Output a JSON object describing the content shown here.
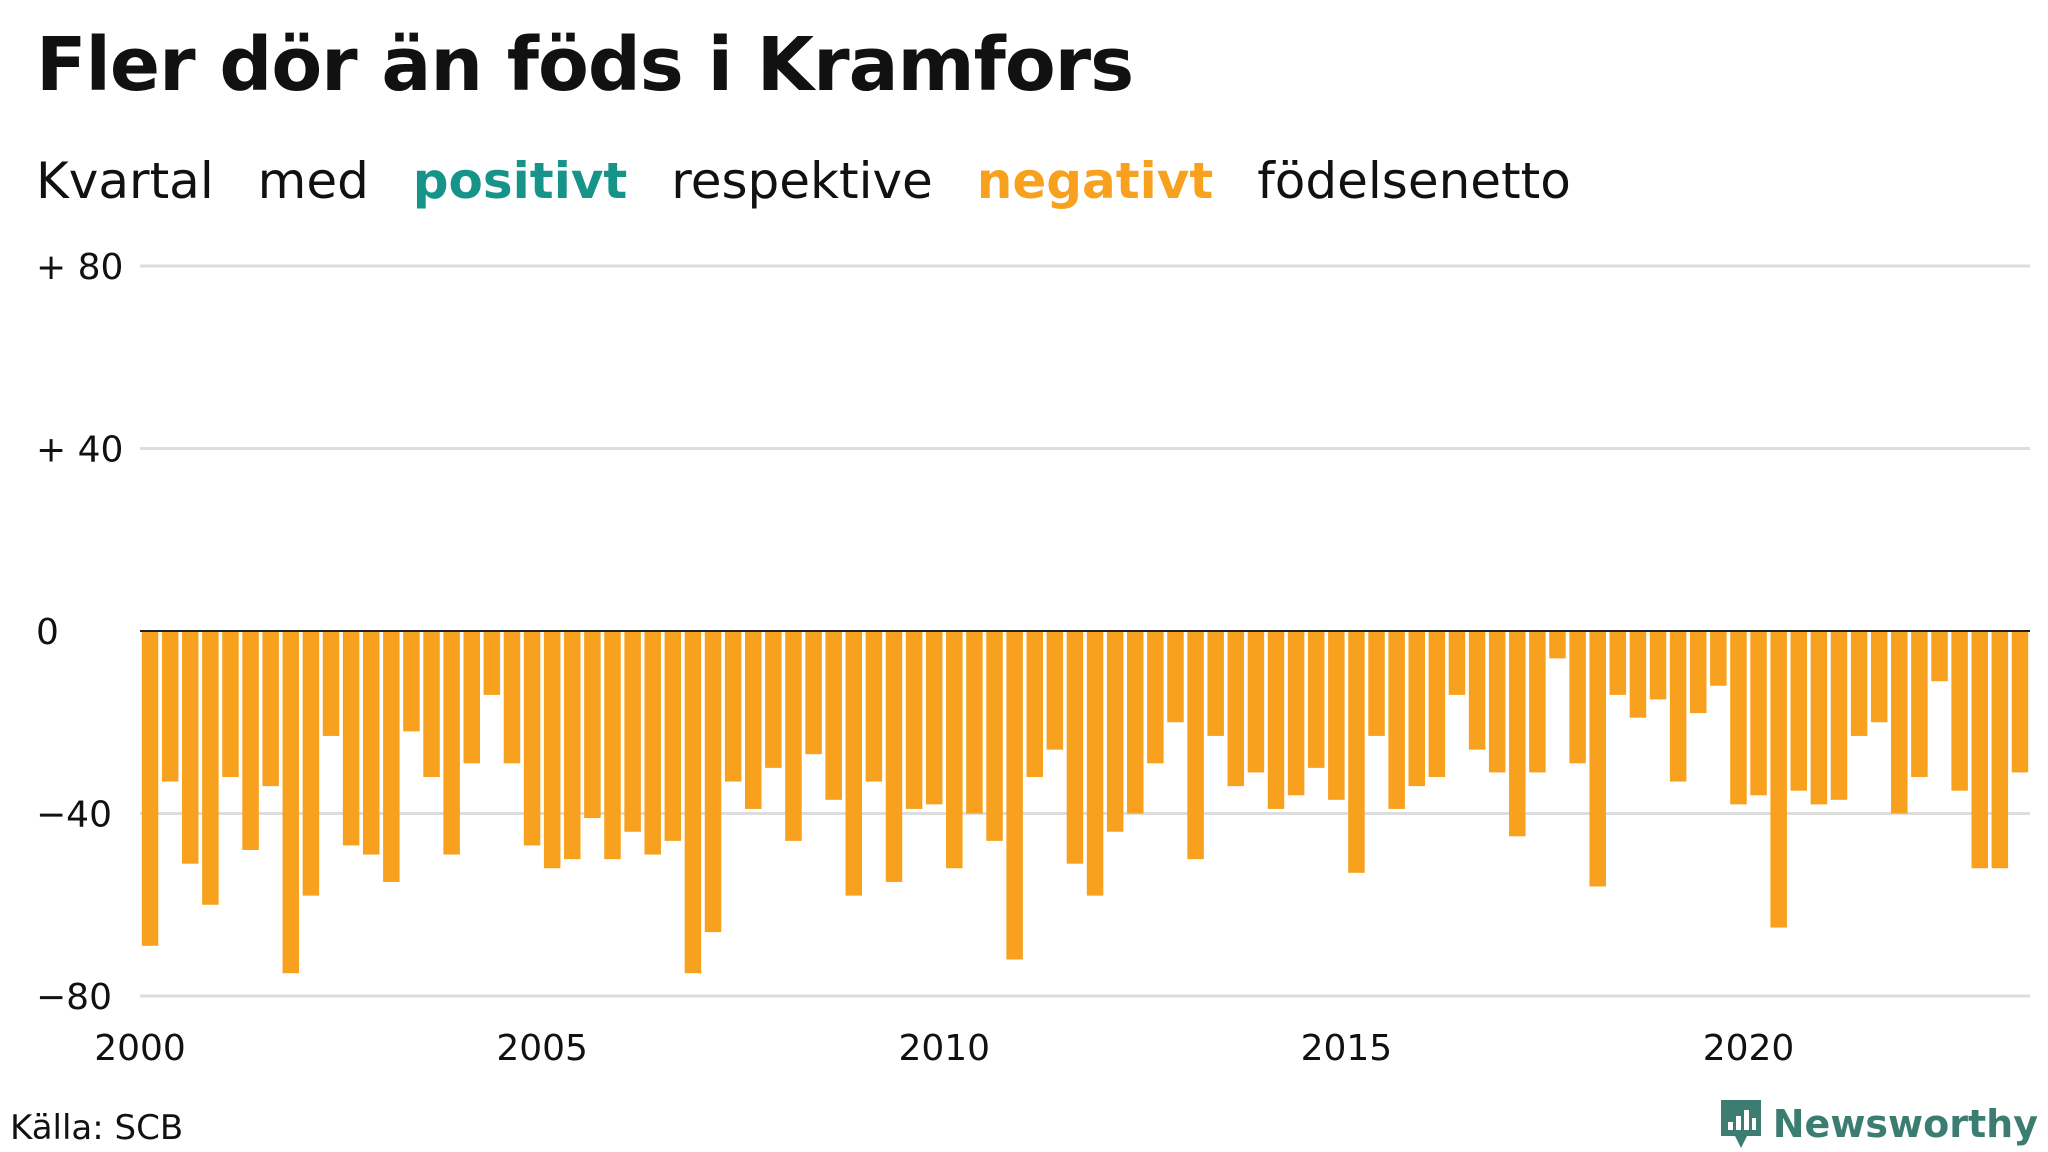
{
  "header": {
    "title": "Fler dör än föds i Kramfors",
    "subtitle": {
      "w1": "Kvartal",
      "w2": "med",
      "positive": "positivt",
      "w3": "respektive",
      "negative": "negativt",
      "w4": "födelsenetto"
    }
  },
  "colors": {
    "positive": "#16948a",
    "negative": "#f7a11e",
    "grid": "#dddddd",
    "brand": "#3c7d72"
  },
  "footer": {
    "source": "Källa: SCB",
    "brand": "Newsworthy",
    "brand_icon": "newsworthy-logo-icon"
  },
  "chart_data": {
    "type": "bar",
    "x_start": "2000-Q1",
    "frequency": "quarterly",
    "x_tick_labels": [
      "2000",
      "2005",
      "2010",
      "2015",
      "2020"
    ],
    "y_ticks": [
      {
        "value": 80,
        "label": "+ 80"
      },
      {
        "value": 40,
        "label": "+ 40"
      },
      {
        "value": 0,
        "label": "0"
      },
      {
        "value": -40,
        "label": "−40"
      },
      {
        "value": -80,
        "label": "−80"
      }
    ],
    "ylim": [
      -80,
      80
    ],
    "xlabel": "",
    "ylabel": "",
    "grid": true,
    "values": [
      -69,
      -33,
      -51,
      -60,
      -32,
      -48,
      -34,
      -75,
      -58,
      -23,
      -47,
      -49,
      -55,
      -22,
      -32,
      -49,
      -29,
      -14,
      -29,
      -47,
      -52,
      -50,
      -41,
      -50,
      -44,
      -49,
      -46,
      -75,
      -66,
      -33,
      -39,
      -30,
      -46,
      -27,
      -37,
      -58,
      -33,
      -55,
      -39,
      -38,
      -52,
      -40,
      -46,
      -72,
      -32,
      -26,
      -51,
      -58,
      -44,
      -40,
      -29,
      -20,
      -50,
      -23,
      -34,
      -31,
      -39,
      -36,
      -30,
      -37,
      -53,
      -23,
      -39,
      -34,
      -32,
      -14,
      -26,
      -31,
      -45,
      -31,
      -6,
      -29,
      -56,
      -14,
      -19,
      -15,
      -33,
      -18,
      -12,
      -38,
      -36,
      -65,
      -35,
      -38,
      -37,
      -23,
      -20,
      -40,
      -32,
      -11,
      -35,
      -52,
      -52,
      -31
    ]
  }
}
